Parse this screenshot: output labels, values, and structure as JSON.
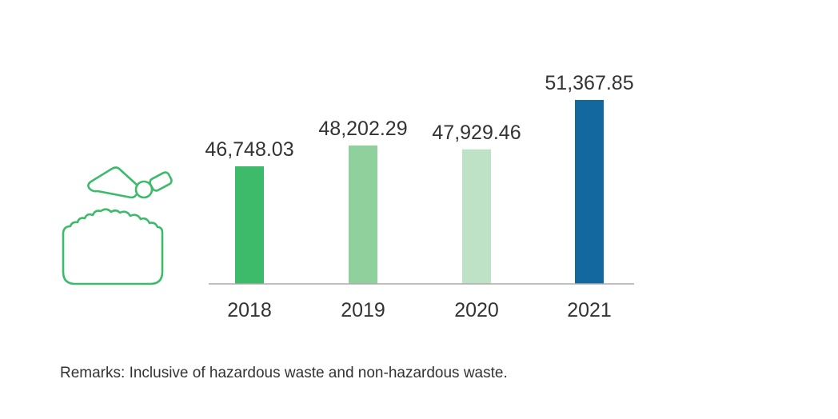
{
  "colors": {
    "bar_2018": "#3dba6a",
    "bar_2019": "#8fd09c",
    "bar_2020": "#bde2c5",
    "bar_2021": "#13689f",
    "axis": "#aaaaaa",
    "text": "#333333",
    "icon": "#3dba6a"
  },
  "icon": {
    "name": "waste-bag-icon"
  },
  "chart_data": {
    "type": "bar",
    "categories": [
      "2018",
      "2019",
      "2020",
      "2021"
    ],
    "values": [
      46748.03,
      48202.29,
      47929.46,
      51367.85
    ],
    "value_labels": [
      "46,748.03",
      "48,202.29",
      "47,929.46",
      "51,367.85"
    ],
    "title": "",
    "xlabel": "",
    "ylabel": "",
    "grid": false,
    "legend": "none"
  },
  "remarks": "Remarks: Inclusive of hazardous waste and non-hazardous waste."
}
